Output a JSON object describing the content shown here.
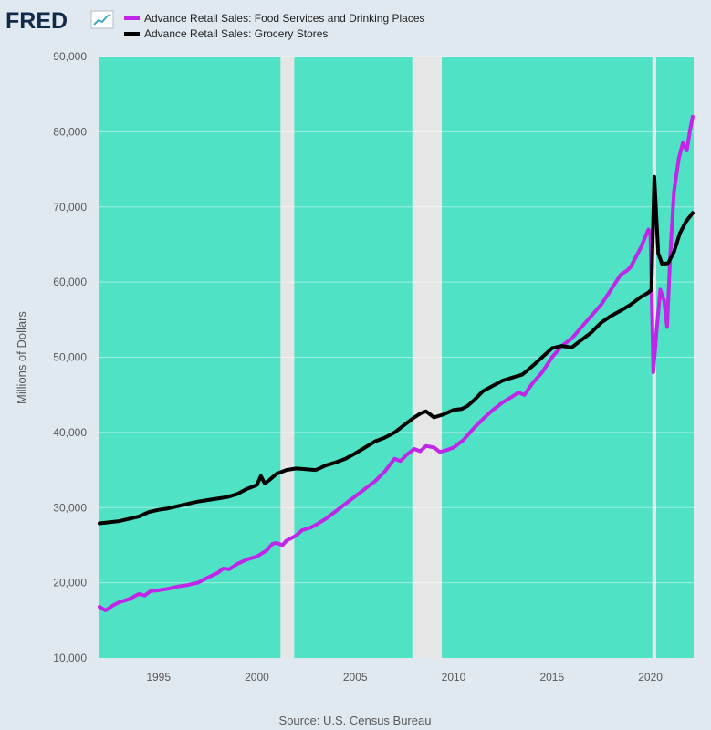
{
  "logo": {
    "text": "FRED"
  },
  "colors": {
    "page_bg": "#e1e9f0",
    "plot_bg": "#4fe2c4",
    "recession": "#e6e6e6",
    "series_food": "#c026e8",
    "series_grocery": "#000000",
    "logo": "#0f2a4a"
  },
  "footer": {
    "source": "Source: U.S. Census Bureau"
  },
  "chart_data": {
    "type": "line",
    "ylabel": "Millions of Dollars",
    "ylim": [
      10000,
      90000
    ],
    "xlim": [
      1992.0,
      2022.2
    ],
    "y_ticks": [
      10000,
      20000,
      30000,
      40000,
      50000,
      60000,
      70000,
      80000,
      90000
    ],
    "y_tick_labels": [
      "10,000",
      "20,000",
      "30,000",
      "40,000",
      "50,000",
      "60,000",
      "70,000",
      "80,000",
      "90,000"
    ],
    "x_ticks": [
      1995,
      2000,
      2005,
      2010,
      2015,
      2020
    ],
    "x_tick_labels": [
      "1995",
      "2000",
      "2005",
      "2010",
      "2015",
      "2020"
    ],
    "legend_position": "top-left",
    "grid": true,
    "recessions": [
      [
        2001.2,
        2001.9
      ],
      [
        2007.9,
        2009.4
      ],
      [
        2020.1,
        2020.3
      ]
    ],
    "series": [
      {
        "name": "Advance Retail Sales: Food Services and Drinking Places",
        "color": "#c026e8",
        "points": [
          [
            1992.0,
            16800
          ],
          [
            1992.3,
            16300
          ],
          [
            1992.7,
            17000
          ],
          [
            1993.0,
            17400
          ],
          [
            1993.5,
            17800
          ],
          [
            1994.0,
            18500
          ],
          [
            1994.3,
            18300
          ],
          [
            1994.6,
            18900
          ],
          [
            1995.0,
            19000
          ],
          [
            1995.5,
            19200
          ],
          [
            1996.0,
            19500
          ],
          [
            1996.5,
            19700
          ],
          [
            1997.0,
            20000
          ],
          [
            1997.5,
            20700
          ],
          [
            1998.0,
            21300
          ],
          [
            1998.3,
            21900
          ],
          [
            1998.6,
            21800
          ],
          [
            1999.0,
            22500
          ],
          [
            1999.5,
            23100
          ],
          [
            2000.0,
            23500
          ],
          [
            2000.5,
            24300
          ],
          [
            2000.8,
            25200
          ],
          [
            2001.0,
            25300
          ],
          [
            2001.3,
            25000
          ],
          [
            2001.5,
            25600
          ],
          [
            2001.8,
            26000
          ],
          [
            2002.0,
            26300
          ],
          [
            2002.3,
            27000
          ],
          [
            2002.7,
            27300
          ],
          [
            2003.0,
            27700
          ],
          [
            2003.5,
            28500
          ],
          [
            2004.0,
            29500
          ],
          [
            2004.5,
            30500
          ],
          [
            2005.0,
            31500
          ],
          [
            2005.5,
            32500
          ],
          [
            2006.0,
            33500
          ],
          [
            2006.5,
            34800
          ],
          [
            2007.0,
            36500
          ],
          [
            2007.3,
            36200
          ],
          [
            2007.6,
            37000
          ],
          [
            2008.0,
            37800
          ],
          [
            2008.3,
            37500
          ],
          [
            2008.6,
            38200
          ],
          [
            2009.0,
            38000
          ],
          [
            2009.3,
            37400
          ],
          [
            2009.6,
            37600
          ],
          [
            2010.0,
            38000
          ],
          [
            2010.5,
            39000
          ],
          [
            2011.0,
            40500
          ],
          [
            2011.5,
            41800
          ],
          [
            2012.0,
            43000
          ],
          [
            2012.5,
            44000
          ],
          [
            2013.0,
            44800
          ],
          [
            2013.3,
            45300
          ],
          [
            2013.6,
            45000
          ],
          [
            2014.0,
            46500
          ],
          [
            2014.5,
            48000
          ],
          [
            2015.0,
            50000
          ],
          [
            2015.5,
            51500
          ],
          [
            2016.0,
            52500
          ],
          [
            2016.5,
            54000
          ],
          [
            2017.0,
            55500
          ],
          [
            2017.5,
            57000
          ],
          [
            2018.0,
            59000
          ],
          [
            2018.5,
            61000
          ],
          [
            2018.8,
            61500
          ],
          [
            2019.0,
            62000
          ],
          [
            2019.5,
            64500
          ],
          [
            2019.9,
            67000
          ],
          [
            2020.0,
            66500
          ],
          [
            2020.15,
            48000
          ],
          [
            2020.3,
            53000
          ],
          [
            2020.5,
            59000
          ],
          [
            2020.7,
            57500
          ],
          [
            2020.85,
            54000
          ],
          [
            2021.0,
            63000
          ],
          [
            2021.2,
            72000
          ],
          [
            2021.45,
            76500
          ],
          [
            2021.65,
            78500
          ],
          [
            2021.85,
            77500
          ],
          [
            2022.0,
            80000
          ],
          [
            2022.15,
            82000
          ]
        ]
      },
      {
        "name": "Advance Retail Sales: Grocery Stores",
        "color": "#000000",
        "points": [
          [
            1992.0,
            27900
          ],
          [
            1993.0,
            28200
          ],
          [
            1994.0,
            28800
          ],
          [
            1994.5,
            29400
          ],
          [
            1995.0,
            29700
          ],
          [
            1995.5,
            29900
          ],
          [
            1996.0,
            30200
          ],
          [
            1996.5,
            30500
          ],
          [
            1997.0,
            30800
          ],
          [
            1997.5,
            31000
          ],
          [
            1998.0,
            31200
          ],
          [
            1998.5,
            31400
          ],
          [
            1999.0,
            31800
          ],
          [
            1999.5,
            32500
          ],
          [
            2000.0,
            33000
          ],
          [
            2000.2,
            34200
          ],
          [
            2000.4,
            33200
          ],
          [
            2000.7,
            33800
          ],
          [
            2001.0,
            34500
          ],
          [
            2001.5,
            35000
          ],
          [
            2002.0,
            35200
          ],
          [
            2002.5,
            35100
          ],
          [
            2003.0,
            35000
          ],
          [
            2003.5,
            35600
          ],
          [
            2004.0,
            36000
          ],
          [
            2004.5,
            36500
          ],
          [
            2005.0,
            37200
          ],
          [
            2005.5,
            38000
          ],
          [
            2006.0,
            38800
          ],
          [
            2006.5,
            39300
          ],
          [
            2007.0,
            40000
          ],
          [
            2007.5,
            41000
          ],
          [
            2008.0,
            42000
          ],
          [
            2008.3,
            42500
          ],
          [
            2008.6,
            42800
          ],
          [
            2009.0,
            42000
          ],
          [
            2009.5,
            42400
          ],
          [
            2010.0,
            43000
          ],
          [
            2010.4,
            43100
          ],
          [
            2010.7,
            43500
          ],
          [
            2011.0,
            44200
          ],
          [
            2011.5,
            45500
          ],
          [
            2012.0,
            46200
          ],
          [
            2012.5,
            46900
          ],
          [
            2013.0,
            47300
          ],
          [
            2013.5,
            47700
          ],
          [
            2014.0,
            48800
          ],
          [
            2014.5,
            50000
          ],
          [
            2015.0,
            51200
          ],
          [
            2015.5,
            51500
          ],
          [
            2016.0,
            51300
          ],
          [
            2016.5,
            52300
          ],
          [
            2017.0,
            53300
          ],
          [
            2017.5,
            54600
          ],
          [
            2018.0,
            55500
          ],
          [
            2018.5,
            56200
          ],
          [
            2019.0,
            57000
          ],
          [
            2019.5,
            58000
          ],
          [
            2019.9,
            58600
          ],
          [
            2020.05,
            59000
          ],
          [
            2020.2,
            74000
          ],
          [
            2020.4,
            63800
          ],
          [
            2020.6,
            62400
          ],
          [
            2020.9,
            62500
          ],
          [
            2021.2,
            64000
          ],
          [
            2021.5,
            66500
          ],
          [
            2021.8,
            68000
          ],
          [
            2022.15,
            69200
          ]
        ]
      }
    ]
  }
}
